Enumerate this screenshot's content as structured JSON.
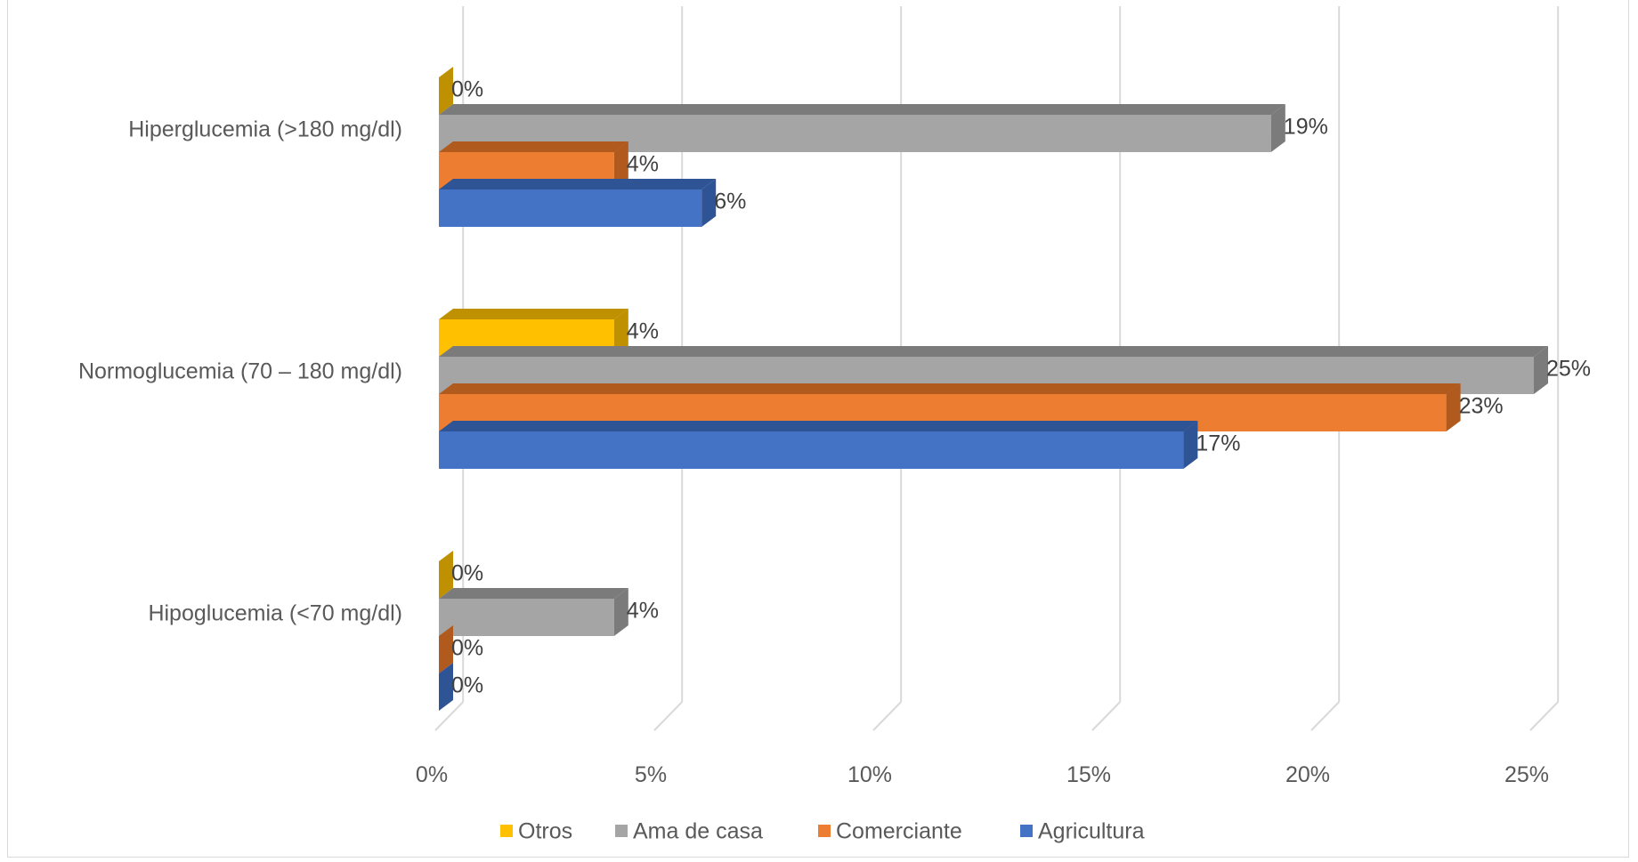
{
  "chart_data": {
    "type": "bar",
    "orientation": "horizontal",
    "style": "3d-clustered",
    "categories": [
      "Hiperglucemia (>180 mg/dl)",
      "Normoglucemia (70 – 180 mg/dl)",
      "Hipoglucemia (<70 mg/dl)"
    ],
    "series": [
      {
        "name": "Otros",
        "color": "#ffc000",
        "side_color": "#bf9000",
        "values": [
          0,
          4,
          0
        ],
        "labels": [
          "0%",
          "4%",
          "0%"
        ]
      },
      {
        "name": "Ama de casa",
        "color": "#a5a5a5",
        "side_color": "#7b7b7b",
        "values": [
          19,
          25,
          4
        ],
        "labels": [
          "19%",
          "25%",
          "4%"
        ]
      },
      {
        "name": "Comerciante",
        "color": "#ed7d31",
        "side_color": "#b05a1e",
        "values": [
          4,
          23,
          0
        ],
        "labels": [
          "4%",
          "23%",
          "0%"
        ]
      },
      {
        "name": "Agricultura",
        "color": "#4472c4",
        "side_color": "#2f5496",
        "values": [
          6,
          17,
          0
        ],
        "labels": [
          "6%",
          "17%",
          "0%"
        ]
      }
    ],
    "xlim": [
      0,
      25
    ],
    "xticks": [
      "0%",
      "5%",
      "10%",
      "15%",
      "20%",
      "25%"
    ],
    "grid": true,
    "legend": "bottom",
    "title": "",
    "xlabel": "",
    "ylabel": ""
  }
}
